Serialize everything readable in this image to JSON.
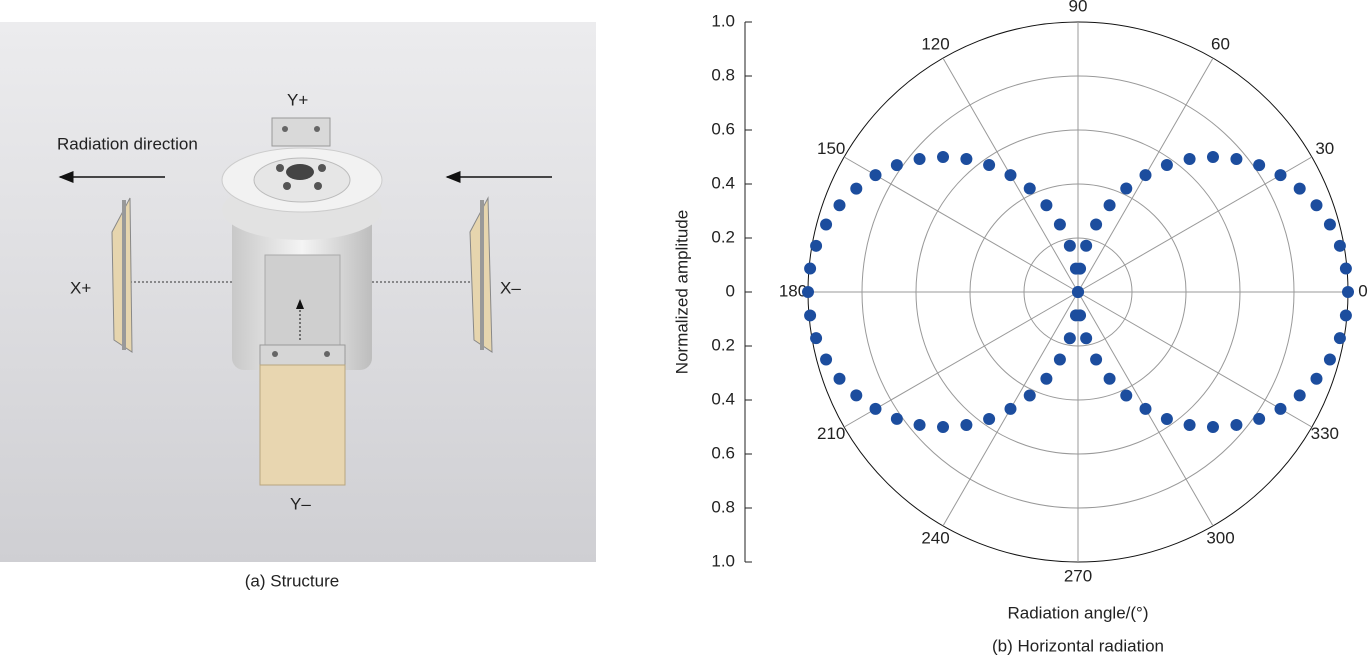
{
  "left_panel": {
    "direction_label": "Radiation direction",
    "y_plus": "Y+",
    "y_minus": "Y–",
    "x_plus": "X+",
    "x_minus": "X–",
    "caption": "(a) Structure"
  },
  "chart_data": {
    "type": "polar-scatter",
    "caption": "(b) Horizontal radiation",
    "xlabel": "Radiation angle/(°)",
    "ylabel": "Normalized amplitude",
    "color": "#1c4d9e",
    "rlim": [
      0,
      1
    ],
    "grid": true,
    "rticks": [
      0,
      0.2,
      0.4,
      0.6,
      0.8,
      {
        "value": 1,
        "label": "1.0"
      }
    ],
    "thetaticks": [
      0,
      30,
      60,
      90,
      120,
      150,
      180,
      210,
      240,
      270,
      300,
      330
    ],
    "theta": [
      0,
      5,
      10,
      15,
      20,
      25,
      30,
      35,
      40,
      45,
      50,
      55,
      60,
      65,
      70,
      75,
      80,
      85,
      90,
      95,
      100,
      105,
      110,
      115,
      120,
      125,
      130,
      135,
      140,
      145,
      150,
      155,
      160,
      165,
      170,
      175,
      180,
      185,
      190,
      195,
      200,
      205,
      210,
      215,
      220,
      225,
      230,
      235,
      240,
      245,
      250,
      255,
      260,
      265,
      270,
      275,
      280,
      285,
      290,
      295,
      300,
      305,
      310,
      315,
      320,
      325,
      330,
      335,
      340,
      345,
      350,
      355
    ],
    "r": [
      1,
      0.996,
      0.985,
      0.966,
      0.94,
      0.906,
      0.866,
      0.819,
      0.766,
      0.707,
      0.643,
      0.574,
      0.5,
      0.423,
      0.342,
      0.259,
      0.174,
      0.087,
      0,
      0.087,
      0.174,
      0.259,
      0.342,
      0.423,
      0.5,
      0.574,
      0.643,
      0.707,
      0.766,
      0.819,
      0.866,
      0.906,
      0.94,
      0.966,
      0.985,
      0.996,
      1,
      0.996,
      0.985,
      0.966,
      0.94,
      0.906,
      0.866,
      0.819,
      0.766,
      0.707,
      0.643,
      0.574,
      0.5,
      0.423,
      0.342,
      0.259,
      0.174,
      0.087,
      0,
      0.087,
      0.174,
      0.259,
      0.342,
      0.423,
      0.5,
      0.574,
      0.643,
      0.707,
      0.766,
      0.819,
      0.866,
      0.906,
      0.94,
      0.966,
      0.985,
      0.996
    ]
  }
}
